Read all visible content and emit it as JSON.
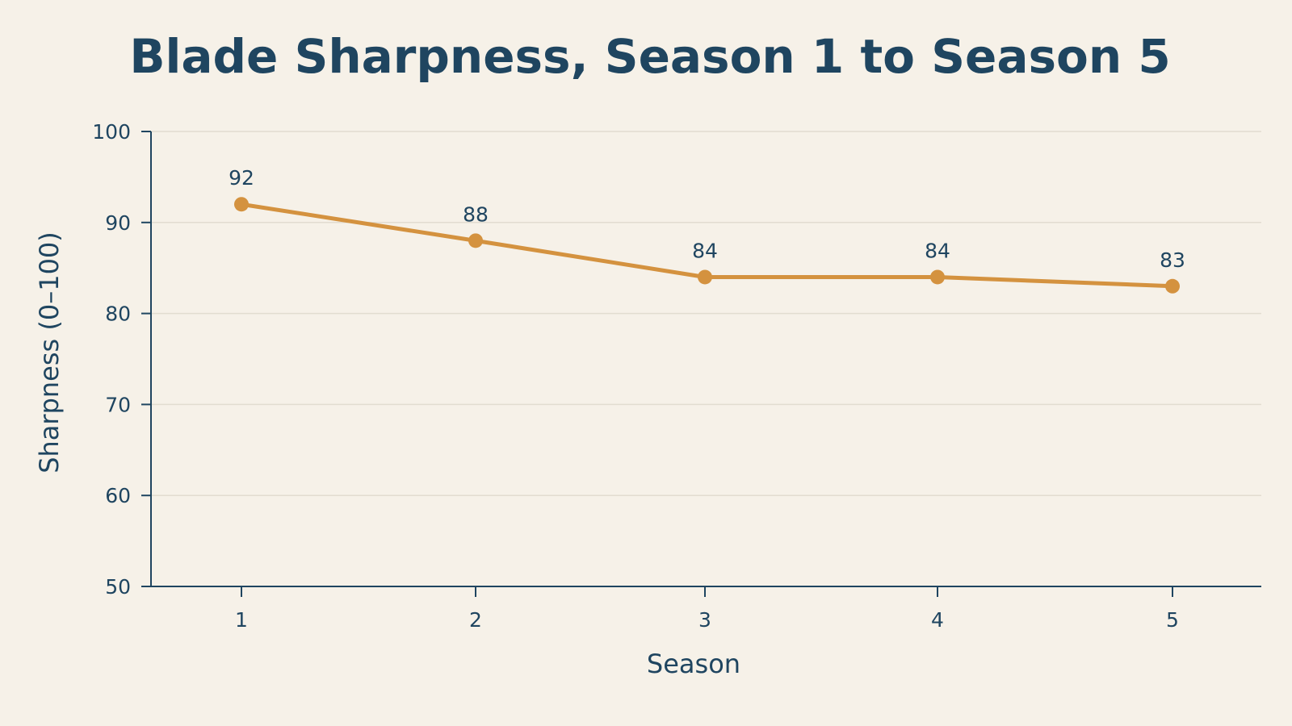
{
  "chart_data": {
    "type": "line",
    "title": "Blade Sharpness, Season 1 to Season 5",
    "xlabel": "Season",
    "ylabel": "Sharpness (0–100)",
    "categories": [
      "1",
      "2",
      "3",
      "4",
      "5"
    ],
    "series": [
      {
        "values": [
          92,
          88,
          84,
          84,
          83
        ],
        "labels": [
          "92",
          "88",
          "84",
          "84",
          "83"
        ]
      }
    ],
    "ylim": [
      50,
      100
    ],
    "yticks": [
      50,
      60,
      70,
      80,
      90,
      100
    ],
    "ytick_labels": [
      "50",
      "60",
      "70",
      "80",
      "90",
      "100"
    ],
    "grid": "horizontal",
    "legend": "none"
  },
  "colors": {
    "background": "#f6f1e8",
    "line": "#d4923f",
    "text": "#1f4560",
    "axis": "#1f4560",
    "grid": "#e2dcd0"
  }
}
